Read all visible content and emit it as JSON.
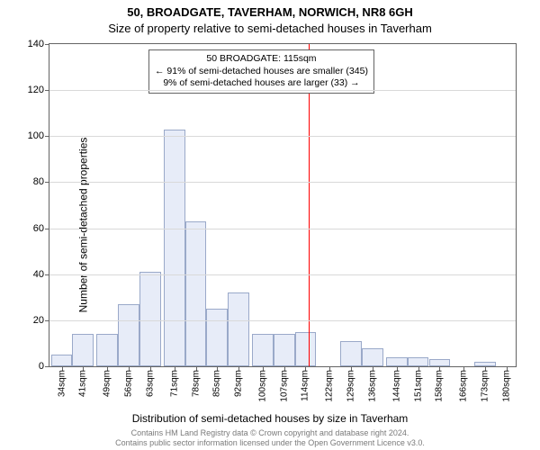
{
  "title_line1": "50, BROADGATE, TAVERHAM, NORWICH, NR8 6GH",
  "title_line2": "Size of property relative to semi-detached houses in Taverham",
  "ylabel": "Number of semi-detached properties",
  "xlabel": "Distribution of semi-detached houses by size in Taverham",
  "chart": {
    "type": "histogram",
    "ylim": [
      0,
      140
    ],
    "ytick_step": 20,
    "grid_color": "#d9d9d9",
    "axis_color": "#646464",
    "bar_fill": "#e7ecf8",
    "bar_stroke": "#9aa9c9",
    "background": "#ffffff",
    "x_min": 30,
    "x_max": 183,
    "categories_sqm": [
      34,
      41,
      49,
      56,
      63,
      71,
      78,
      85,
      92,
      100,
      107,
      114,
      122,
      129,
      136,
      144,
      151,
      158,
      166,
      173,
      180
    ],
    "values": [
      5,
      14,
      14,
      27,
      41,
      103,
      63,
      25,
      32,
      14,
      14,
      15,
      0,
      11,
      8,
      4,
      4,
      3,
      0,
      2,
      0
    ],
    "marker": {
      "value_sqm": 115,
      "line_color": "#ff0000",
      "line_width": 1
    },
    "annotation": {
      "line1": "50 BROADGATE: 115sqm",
      "line2": "← 91% of semi-detached houses are smaller (345)",
      "line3": "9% of semi-detached houses are larger (33) →",
      "border_color": "#646464",
      "bg": "#ffffff",
      "fontsize": 10.5
    }
  },
  "footer_line1": "Contains HM Land Registry data © Crown copyright and database right 2024.",
  "footer_line2": "Contains public sector information licensed under the Open Government Licence v3.0.",
  "footer_color": "#7a7a7a"
}
